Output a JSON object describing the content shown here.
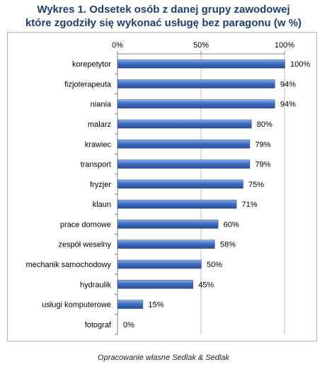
{
  "title_line1": "Wykres 1. Odsetek osób z danej grupy zawodowej",
  "title_line2": "które zgodziły się wykonać usługę bez paragonu (w %)",
  "footer": "Opracowanie własne Sedlak & Sedlak",
  "colors": {
    "title": "#1f3f6e",
    "bar": "#3f6cc0",
    "bar_light": "#8fb0ea",
    "bar_dark": "#2a4f95",
    "grid": "#bfbfbf"
  },
  "chart_data": {
    "type": "bar",
    "orientation": "horizontal",
    "title": "Wykres 1. Odsetek osób z danej grupy zawodowej które zgodziły się wykonać usługę bez paragonu (w %)",
    "categories": [
      "korepetytor",
      "fizjoterapeuta",
      "niania",
      "malarz",
      "krawiec",
      "transport",
      "fryzjer",
      "klaun",
      "prace domowe",
      "zespół weselny",
      "mechanik samochodowy",
      "hydraulik",
      "usługi komputerowe",
      "fotograf"
    ],
    "values": [
      100,
      94,
      94,
      80,
      79,
      79,
      75,
      71,
      60,
      58,
      50,
      45,
      15,
      0
    ],
    "value_labels": [
      "100%",
      "94%",
      "94%",
      "80%",
      "79%",
      "79%",
      "75%",
      "71%",
      "60%",
      "58%",
      "50%",
      "45%",
      "15%",
      "0%"
    ],
    "x_ticks": [
      0,
      50,
      100
    ],
    "x_tick_labels": [
      "0%",
      "50%",
      "100%"
    ],
    "xlim": [
      0,
      100
    ],
    "axis_position": "top",
    "grid": true
  }
}
